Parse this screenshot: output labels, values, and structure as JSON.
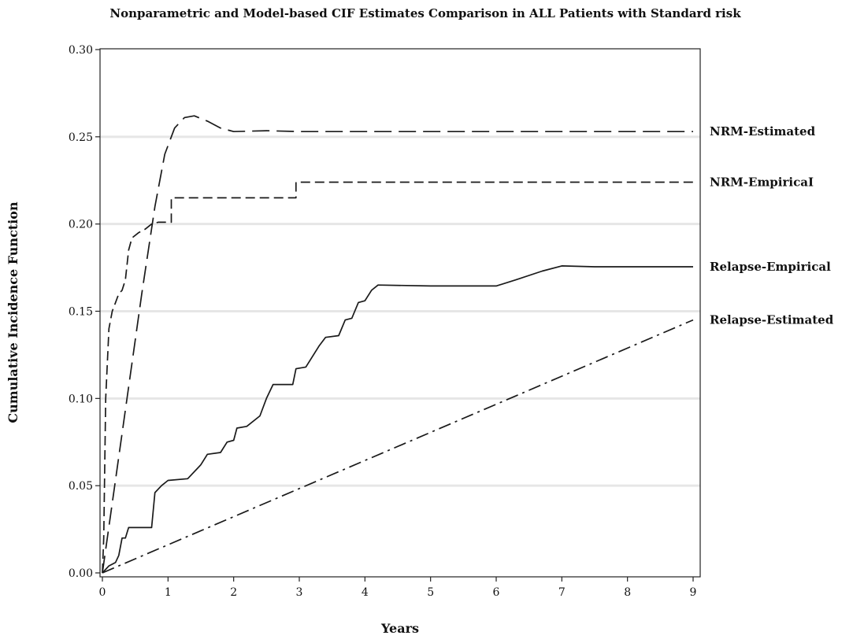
{
  "chart_data": {
    "type": "line",
    "title": "Nonparametric and Model-based CIF Estimates Comparison in ALL Patients with Standard risk",
    "xlabel": "Years",
    "ylabel": "Cumulative Incidence Function",
    "xlim": [
      0,
      9
    ],
    "ylim": [
      0,
      0.3
    ],
    "xticks": [
      "0",
      "1",
      "2",
      "3",
      "4",
      "5",
      "6",
      "7",
      "8",
      "9"
    ],
    "yticks": [
      "0.00",
      "0.05",
      "0.10",
      "0.15",
      "0.20",
      "0.25",
      "0.30"
    ],
    "grid": "horizontal",
    "series": [
      {
        "name": "NRM-Estimated",
        "style": "long-dash",
        "points": [
          [
            0,
            0
          ],
          [
            0.3,
            0.08
          ],
          [
            0.6,
            0.16
          ],
          [
            0.8,
            0.21
          ],
          [
            0.95,
            0.24
          ],
          [
            1.1,
            0.255
          ],
          [
            1.25,
            0.261
          ],
          [
            1.4,
            0.262
          ],
          [
            1.6,
            0.259
          ],
          [
            1.8,
            0.255
          ],
          [
            2.0,
            0.253
          ],
          [
            2.5,
            0.2535
          ],
          [
            3,
            0.253
          ],
          [
            9,
            0.253
          ]
        ]
      },
      {
        "name": "NRM-EmpiricaI",
        "style": "short-dash",
        "points": [
          [
            0,
            0
          ],
          [
            0.02,
            0.02
          ],
          [
            0.05,
            0.1
          ],
          [
            0.1,
            0.14
          ],
          [
            0.15,
            0.15
          ],
          [
            0.2,
            0.155
          ],
          [
            0.25,
            0.16
          ],
          [
            0.3,
            0.162
          ],
          [
            0.35,
            0.168
          ],
          [
            0.4,
            0.185
          ],
          [
            0.45,
            0.192
          ],
          [
            0.55,
            0.195
          ],
          [
            0.65,
            0.197
          ],
          [
            0.75,
            0.2
          ],
          [
            0.85,
            0.201
          ],
          [
            1.05,
            0.201
          ],
          [
            1.05,
            0.215
          ],
          [
            2.95,
            0.215
          ],
          [
            2.95,
            0.224
          ],
          [
            9,
            0.224
          ]
        ]
      },
      {
        "name": "Relapse-Empirical",
        "style": "solid",
        "points": [
          [
            0,
            0
          ],
          [
            0.1,
            0.004
          ],
          [
            0.2,
            0.006
          ],
          [
            0.25,
            0.01
          ],
          [
            0.3,
            0.02
          ],
          [
            0.35,
            0.02
          ],
          [
            0.4,
            0.026
          ],
          [
            0.75,
            0.026
          ],
          [
            0.8,
            0.046
          ],
          [
            0.9,
            0.05
          ],
          [
            1.0,
            0.053
          ],
          [
            1.3,
            0.054
          ],
          [
            1.5,
            0.062
          ],
          [
            1.6,
            0.068
          ],
          [
            1.8,
            0.069
          ],
          [
            1.9,
            0.075
          ],
          [
            2.0,
            0.076
          ],
          [
            2.05,
            0.083
          ],
          [
            2.2,
            0.084
          ],
          [
            2.4,
            0.09
          ],
          [
            2.5,
            0.1
          ],
          [
            2.6,
            0.108
          ],
          [
            2.9,
            0.108
          ],
          [
            2.95,
            0.117
          ],
          [
            3.1,
            0.118
          ],
          [
            3.3,
            0.13
          ],
          [
            3.4,
            0.135
          ],
          [
            3.6,
            0.136
          ],
          [
            3.7,
            0.145
          ],
          [
            3.8,
            0.146
          ],
          [
            3.9,
            0.155
          ],
          [
            4.0,
            0.156
          ],
          [
            4.1,
            0.162
          ],
          [
            4.2,
            0.165
          ],
          [
            5,
            0.1645
          ],
          [
            6,
            0.1645
          ],
          [
            6.3,
            0.168
          ],
          [
            6.7,
            0.173
          ],
          [
            7.0,
            0.176
          ],
          [
            7.5,
            0.1755
          ],
          [
            9,
            0.1755
          ]
        ]
      },
      {
        "name": "Relapse-Estimated",
        "style": "dash-dot",
        "points": [
          [
            0,
            0
          ],
          [
            9,
            0.145
          ]
        ]
      }
    ]
  }
}
